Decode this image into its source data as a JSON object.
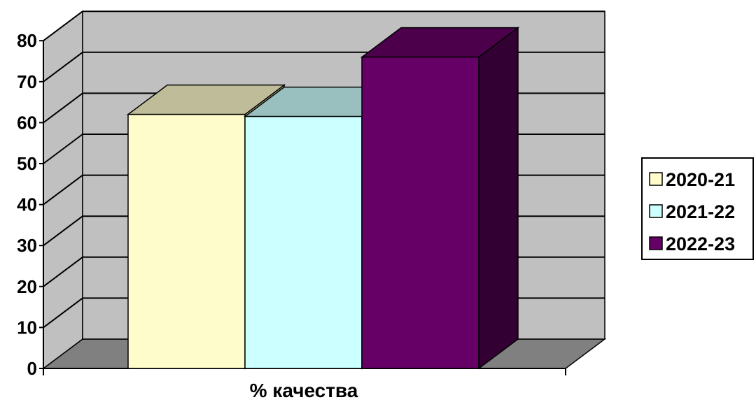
{
  "chart_data": {
    "type": "bar",
    "title": "",
    "categories": [
      "% качества"
    ],
    "xlabel": "% качества",
    "ylabel": "",
    "ylim": [
      0,
      80
    ],
    "yticks": [
      0,
      10,
      20,
      30,
      40,
      50,
      60,
      70,
      80
    ],
    "grid": true,
    "three_d": true,
    "legend_position": "right",
    "series": [
      {
        "name": "2020-21",
        "values": [
          62
        ],
        "color": "#FFFCCC",
        "top_color": "#BFBC99",
        "side_color": "#BFBC99"
      },
      {
        "name": "2021-22",
        "values": [
          61.5
        ],
        "color": "#CCFFFF",
        "top_color": "#99BFBF",
        "side_color": "#99BFBF"
      },
      {
        "name": "2022-23",
        "values": [
          76
        ],
        "color": "#660066",
        "top_color": "#4C004C",
        "side_color": "#330033"
      }
    ],
    "colors": {
      "back_wall": "#C0C0C0",
      "side_wall": "#C0C0C0",
      "floor": "#808080",
      "gridline": "#000000"
    }
  }
}
